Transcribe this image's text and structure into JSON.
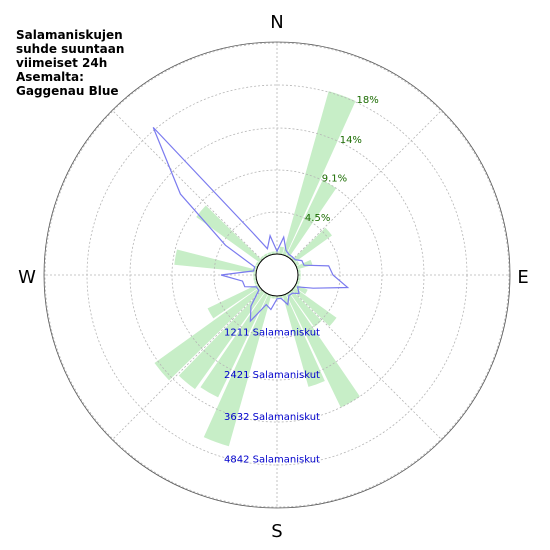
{
  "title_lines": [
    "Salamaniskujen",
    "suhde suuntaan",
    "viimeiset 24h",
    "Asemalta:",
    "Gaggenau Blue"
  ],
  "compass": {
    "n": "N",
    "e": "E",
    "s": "S",
    "w": "W"
  },
  "chart_data": {
    "type": "polar",
    "title": "Salamaniskujen suhde suuntaan viimeiset 24h Asemalta: Gaggenau Blue",
    "directions_deg": [
      0,
      10,
      20,
      30,
      40,
      50,
      60,
      70,
      80,
      90,
      100,
      110,
      120,
      130,
      140,
      150,
      160,
      170,
      180,
      190,
      200,
      210,
      220,
      230,
      240,
      250,
      260,
      270,
      280,
      290,
      300,
      310,
      320,
      330,
      340,
      350
    ],
    "percent_ring_labels": [
      "4.5%",
      "9.1%",
      "14%",
      "18%"
    ],
    "percent_ring_values": [
      4.5,
      9.1,
      13.6,
      18.2
    ],
    "count_ring_labels": [
      "1211 Salamaniskut",
      "2421 Salamaniskut",
      "3632 Salamaniskut",
      "4842 Salamaniskut"
    ],
    "count_ring_values": [
      1211,
      2421,
      3632,
      4842
    ],
    "series": [
      {
        "name": "percent",
        "color": "#c7eec7",
        "values": [
          0.3,
          0.8,
          18.2,
          9.0,
          0.3,
          5.0,
          0.4,
          1.7,
          0.3,
          0.3,
          0.3,
          0.3,
          1.4,
          5.6,
          4.6,
          13.5,
          10.2,
          0.3,
          0.3,
          0.3,
          16.8,
          12.3,
          12.8,
          13.9,
          6.0,
          0.3,
          0.3,
          0.3,
          8.8,
          0.3,
          0.3,
          8.4,
          0.3,
          0.3,
          0.3,
          0.3
        ]
      },
      {
        "name": "count",
        "color": "#7b7bef",
        "values": [
          80,
          500,
          150,
          80,
          80,
          80,
          220,
          220,
          900,
          1000,
          1450,
          500,
          80,
          220,
          80,
          80,
          300,
          80,
          80,
          400,
          300,
          920,
          560,
          80,
          80,
          380,
          400,
          1000,
          80,
          80,
          1100,
          3000,
          4900,
          800,
          200,
          540
        ]
      }
    ]
  }
}
